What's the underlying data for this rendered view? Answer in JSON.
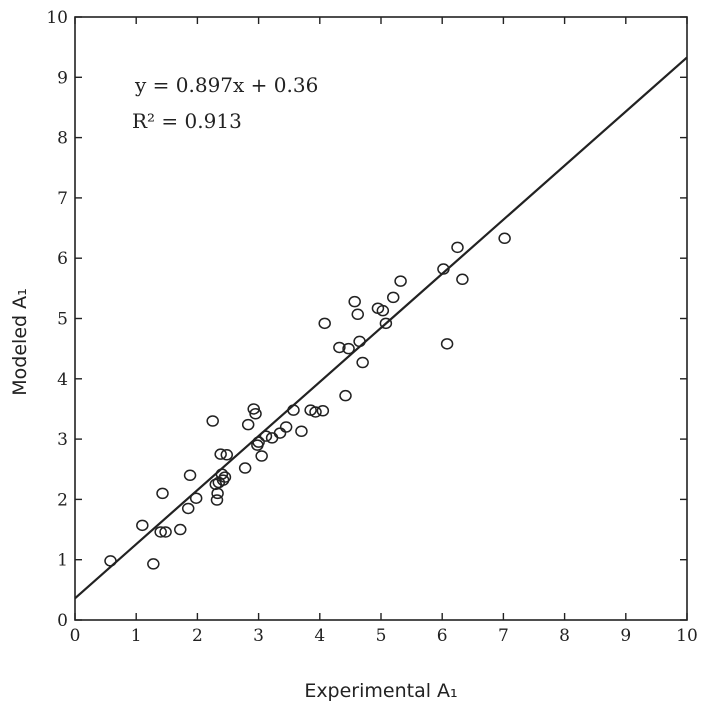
{
  "chart_data": {
    "type": "scatter",
    "title": "",
    "xlabel": "Experimental A₁",
    "ylabel": "Modeled A₁",
    "xlim": [
      0,
      10
    ],
    "ylim": [
      0,
      10
    ],
    "x_ticks": [
      "0",
      "1",
      "2",
      "3",
      "4",
      "5",
      "6",
      "7",
      "8",
      "9",
      "10"
    ],
    "y_ticks": [
      "0",
      "1",
      "2",
      "3",
      "4",
      "5",
      "6",
      "7",
      "8",
      "9",
      "10"
    ],
    "grid": false,
    "legend": "none",
    "marker": "open-circle",
    "color": "#222222",
    "annotations": {
      "equation": "y = 0.897x + 0.36",
      "r_squared": "R² = 0.913"
    },
    "fit_line": {
      "slope": 0.897,
      "intercept": 0.36
    },
    "points": [
      [
        0.58,
        0.98
      ],
      [
        1.1,
        1.57
      ],
      [
        1.28,
        0.93
      ],
      [
        1.4,
        1.46
      ],
      [
        1.43,
        2.1
      ],
      [
        1.48,
        1.46
      ],
      [
        1.72,
        1.5
      ],
      [
        1.85,
        1.85
      ],
      [
        1.88,
        2.4
      ],
      [
        1.98,
        2.02
      ],
      [
        2.25,
        3.3
      ],
      [
        2.3,
        2.25
      ],
      [
        2.32,
        1.99
      ],
      [
        2.33,
        2.1
      ],
      [
        2.35,
        2.28
      ],
      [
        2.38,
        2.75
      ],
      [
        2.4,
        2.42
      ],
      [
        2.42,
        2.32
      ],
      [
        2.45,
        2.37
      ],
      [
        2.48,
        2.74
      ],
      [
        2.78,
        2.52
      ],
      [
        2.83,
        3.24
      ],
      [
        2.92,
        3.5
      ],
      [
        2.95,
        3.42
      ],
      [
        2.98,
        2.9
      ],
      [
        3.0,
        2.95
      ],
      [
        3.05,
        2.72
      ],
      [
        3.12,
        3.05
      ],
      [
        3.22,
        3.02
      ],
      [
        3.35,
        3.1
      ],
      [
        3.45,
        3.2
      ],
      [
        3.57,
        3.48
      ],
      [
        3.7,
        3.13
      ],
      [
        3.85,
        3.48
      ],
      [
        3.93,
        3.45
      ],
      [
        4.05,
        3.47
      ],
      [
        4.08,
        4.92
      ],
      [
        4.32,
        4.52
      ],
      [
        4.42,
        3.72
      ],
      [
        4.47,
        4.5
      ],
      [
        4.57,
        5.28
      ],
      [
        4.62,
        5.07
      ],
      [
        4.65,
        4.62
      ],
      [
        4.7,
        4.27
      ],
      [
        4.95,
        5.17
      ],
      [
        5.03,
        5.13
      ],
      [
        5.08,
        4.92
      ],
      [
        5.2,
        5.35
      ],
      [
        5.32,
        5.62
      ],
      [
        6.02,
        5.82
      ],
      [
        6.08,
        4.58
      ],
      [
        6.25,
        6.18
      ],
      [
        6.33,
        5.65
      ],
      [
        7.02,
        6.33
      ]
    ]
  }
}
